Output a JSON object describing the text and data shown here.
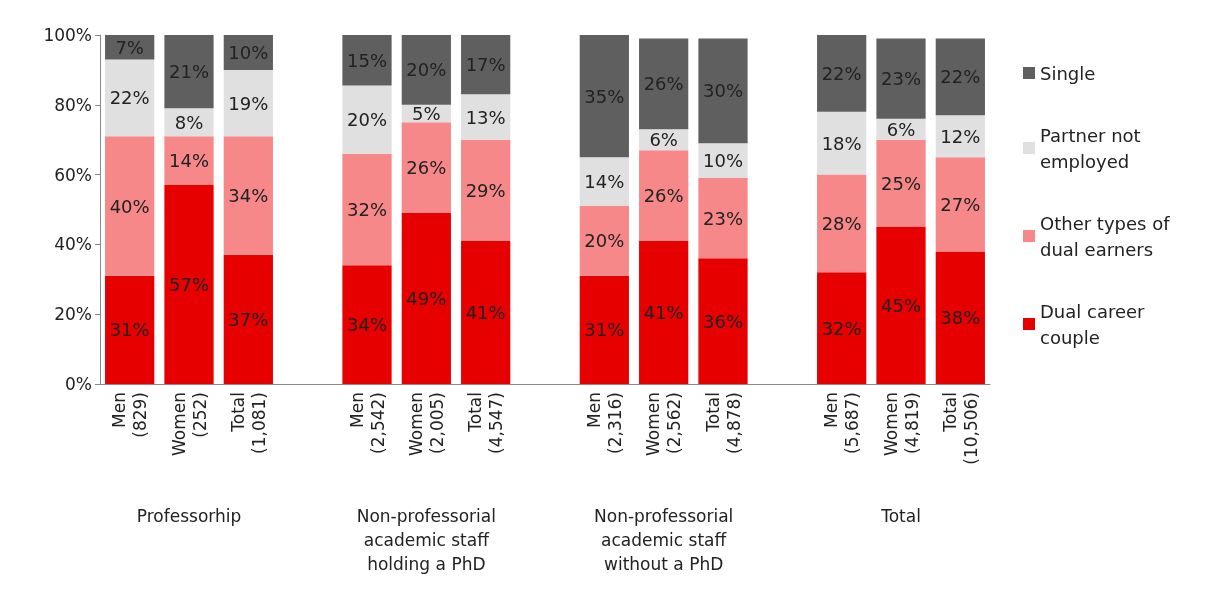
{
  "chart_data": {
    "type": "bar",
    "stacked": true,
    "categories": [
      "Men (829)",
      "Women (252)",
      "Total (1,081)",
      null,
      "Men (2,542)",
      "Women (2,005)",
      "Total (4,547)",
      null,
      "Men (2,316)",
      "Women (2,562)",
      "Total (4,878)",
      null,
      "Men (5,687)",
      "Women (4,819)",
      "Total (10,506)"
    ],
    "annotations": [
      "Professorhip",
      "Non-professorial academic staff holding a PhD",
      "Non-professorial academic staff without a PhD",
      "Total"
    ],
    "ylim": [
      0,
      100
    ],
    "yticks": [
      {
        "value": 0,
        "label": "0%"
      },
      {
        "value": 20,
        "label": "20%"
      },
      {
        "value": 40,
        "label": "40%"
      },
      {
        "value": 60,
        "label": "60%"
      },
      {
        "value": 80,
        "label": "80%"
      },
      {
        "value": 100,
        "label": "100%"
      }
    ],
    "legend": "right",
    "grid": false,
    "series": [
      {
        "name": "Dual career couple",
        "color": "#e60000",
        "values": [
          31,
          57,
          37,
          null,
          34,
          49,
          41,
          null,
          31,
          41,
          36,
          null,
          32,
          45,
          38
        ],
        "value_labels": [
          "31%",
          "57%",
          "37%",
          null,
          "34%",
          "49%",
          "41%",
          null,
          "31%",
          "41%",
          "36%",
          null,
          "32%",
          "45%",
          "38%"
        ]
      },
      {
        "name": "Other types of dual earners",
        "color": "#f6888a",
        "values": [
          40,
          14,
          34,
          null,
          32,
          26,
          29,
          null,
          20,
          26,
          23,
          null,
          28,
          25,
          27
        ],
        "value_labels": [
          "40%",
          "14%",
          "34%",
          null,
          "32%",
          "26%",
          "29%",
          null,
          "20%",
          "26%",
          "23%",
          null,
          "28%",
          "25%",
          "27%"
        ]
      },
      {
        "name": "Partner not employed",
        "color": "#e0e0e0",
        "values": [
          22,
          8,
          19,
          null,
          19.5,
          5,
          13,
          null,
          14,
          6,
          10,
          null,
          18,
          6,
          12
        ],
        "value_labels": [
          "22%",
          "8%",
          "19%",
          null,
          "20%",
          "5%",
          "13%",
          null,
          "14%",
          "6%",
          "10%",
          null,
          "18%",
          "6%",
          "12%"
        ]
      },
      {
        "name": "Single",
        "color": "#5f5f5f",
        "values": [
          7,
          21,
          10,
          null,
          14.5,
          20,
          17,
          null,
          35,
          26,
          30,
          null,
          22,
          23,
          22
        ],
        "value_labels": [
          "7%",
          "21%",
          "10%",
          null,
          "15%",
          "20%",
          "17%",
          null,
          "35%",
          "26%",
          "30%",
          null,
          "22%",
          "23%",
          "22%"
        ]
      }
    ]
  }
}
